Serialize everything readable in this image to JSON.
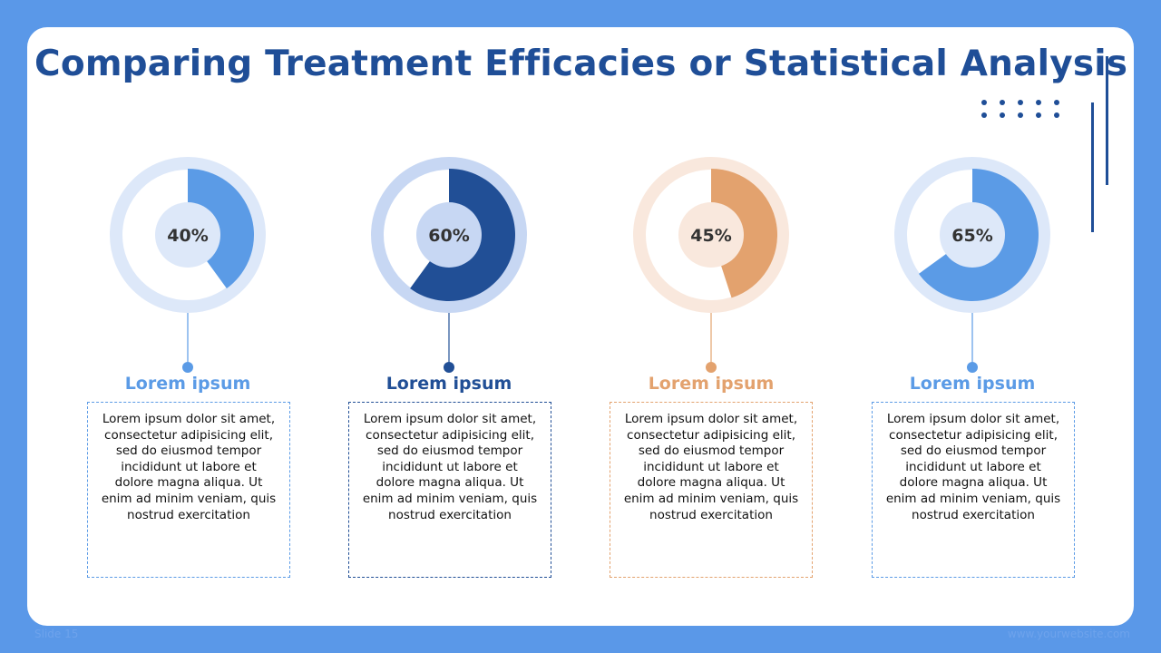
{
  "slide": {
    "title": "Comparing Treatment Efficacies or Statistical Analysis",
    "footer_left": "Slide 15",
    "footer_right": "www.yourwebsite.com"
  },
  "chart_data": {
    "type": "pie",
    "style": "donut",
    "items": [
      {
        "value": 40,
        "value_label": "40%",
        "label": "Lorem ipsum",
        "description": "Lorem ipsum dolor sit amet, consectetur adipisicing elit, sed do eiusmod tempor incididunt ut labore et dolore magna aliqua. Ut enim ad minim veniam, quis nostrud exercitation",
        "color": "#5b9be6",
        "track_color": "#dde8f9",
        "center_color": "#dde8f9",
        "label_color": "#5b9be6"
      },
      {
        "value": 60,
        "value_label": "60%",
        "label": "Lorem ipsum",
        "description": "Lorem ipsum dolor sit amet, consectetur adipisicing elit, sed do eiusmod tempor incididunt ut labore et dolore magna aliqua. Ut enim ad minim veniam, quis nostrud exercitation",
        "color": "#214f96",
        "track_color": "#c7d7f3",
        "center_color": "#c7d7f3",
        "label_color": "#214f96"
      },
      {
        "value": 45,
        "value_label": "45%",
        "label": "Lorem ipsum",
        "description": "Lorem ipsum dolor sit amet, consectetur adipisicing elit, sed do eiusmod tempor incididunt ut labore et dolore magna aliqua. Ut enim ad minim veniam, quis nostrud exercitation",
        "color": "#e3a26e",
        "track_color": "#f9e8dd",
        "center_color": "#f9e8dd",
        "label_color": "#e3a26e"
      },
      {
        "value": 65,
        "value_label": "65%",
        "label": "Lorem ipsum",
        "description": "Lorem ipsum dolor sit amet, consectetur adipisicing elit, sed do eiusmod tempor incididunt ut labore et dolore magna aliqua. Ut enim ad minim veniam, quis nostrud exercitation",
        "color": "#5b9be6",
        "track_color": "#dde8f9",
        "center_color": "#dde8f9",
        "label_color": "#5b9be6"
      }
    ]
  }
}
